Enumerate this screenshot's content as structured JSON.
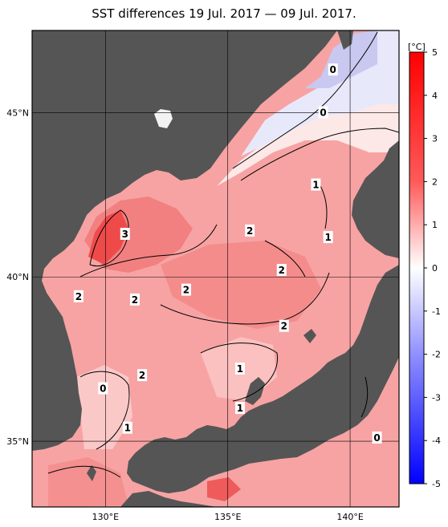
{
  "title": "SST differences 19 Jul. 2017 — 09 Jul. 2017.",
  "map": {
    "lon_range": [
      127,
      142
    ],
    "lat_range": [
      33,
      47.5
    ],
    "x_ticks": [
      {
        "lon": 130,
        "label": "130°E"
      },
      {
        "lon": 135,
        "label": "135°E"
      },
      {
        "lon": 140,
        "label": "140°E"
      }
    ],
    "y_ticks": [
      {
        "lat": 45,
        "label": "45°N"
      },
      {
        "lat": 40,
        "label": "40°N"
      },
      {
        "lat": 35,
        "label": "35°N"
      }
    ],
    "contour_labels": [
      {
        "text": "0",
        "lon": 139.3,
        "lat": 46.3
      },
      {
        "text": "0",
        "lon": 138.9,
        "lat": 45.0
      },
      {
        "text": "1",
        "lon": 138.6,
        "lat": 42.8
      },
      {
        "text": "1",
        "lon": 139.1,
        "lat": 41.2
      },
      {
        "text": "2",
        "lon": 135.9,
        "lat": 41.4
      },
      {
        "text": "3",
        "lon": 130.8,
        "lat": 41.3
      },
      {
        "text": "2",
        "lon": 137.2,
        "lat": 40.2
      },
      {
        "text": "2",
        "lon": 133.3,
        "lat": 39.6
      },
      {
        "text": "2",
        "lon": 128.9,
        "lat": 39.4
      },
      {
        "text": "2",
        "lon": 131.2,
        "lat": 39.3
      },
      {
        "text": "2",
        "lon": 137.3,
        "lat": 38.5
      },
      {
        "text": "1",
        "lon": 135.5,
        "lat": 37.2
      },
      {
        "text": "2",
        "lon": 131.5,
        "lat": 37.0
      },
      {
        "text": "0",
        "lon": 129.9,
        "lat": 36.6
      },
      {
        "text": "1",
        "lon": 135.5,
        "lat": 36.0
      },
      {
        "text": "1",
        "lon": 130.9,
        "lat": 35.4
      },
      {
        "text": "0",
        "lon": 141.1,
        "lat": 35.1
      }
    ]
  },
  "colorbar": {
    "unit": "[°C]",
    "range": [
      -5,
      5
    ],
    "ticks": [
      "5",
      "4",
      "3",
      "2",
      "1",
      "0",
      "-1",
      "-2",
      "-3",
      "-4",
      "-5"
    ],
    "colors": {
      "max": "#ff0000",
      "high": "#ff6e6e",
      "mid_pos": "#ffc8c8",
      "zero": "#ffffff",
      "mid_neg": "#c8c8ff",
      "min": "#0000ff"
    }
  },
  "colors": {
    "land": "#555555",
    "grid": "#000000",
    "frame": "#000000"
  }
}
